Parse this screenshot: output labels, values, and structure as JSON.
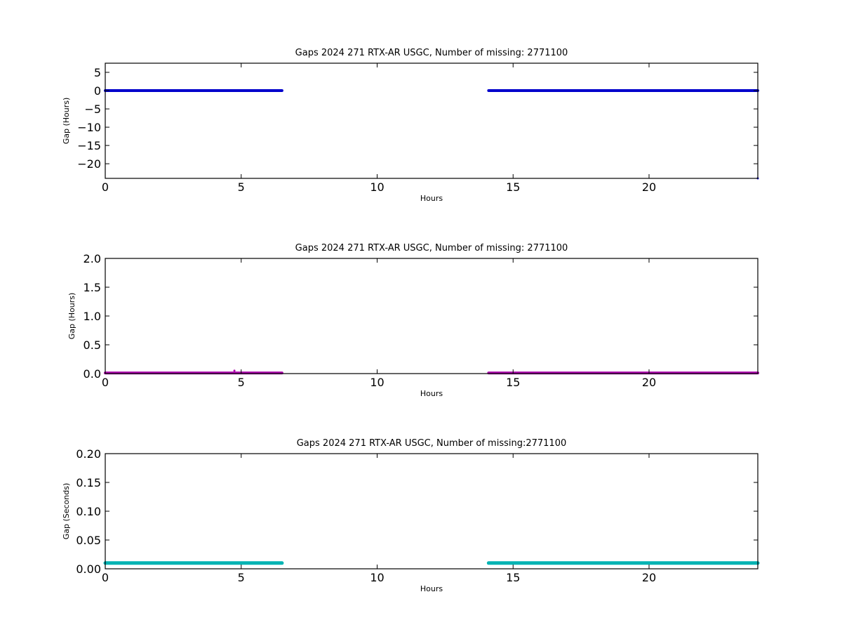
{
  "chart_data": [
    {
      "type": "scatter",
      "title": "Gaps 2024 271 RTX-AR  USGC, Number of missing: 2771100",
      "xlabel": "Hours",
      "ylabel": "Gap (Hours)",
      "xlim": [
        0,
        24
      ],
      "ylim": [
        -24,
        7.5
      ],
      "xticks": [
        0,
        5,
        10,
        15,
        20
      ],
      "yticks": [
        5,
        0,
        -5,
        -10,
        -15,
        -20
      ],
      "xtick_labels": [
        "0",
        "5",
        "10",
        "15",
        "20"
      ],
      "ytick_labels": [
        "5",
        "0",
        "−05",
        "−10",
        "−15",
        "−20"
      ],
      "grid": false,
      "series": [
        {
          "color": "#0000cc",
          "segments": [
            {
              "x": [
                0,
                6.5
              ],
              "y": [
                0,
                0
              ]
            },
            {
              "x": [
                14.1,
                24
              ],
              "y": [
                0,
                0
              ]
            }
          ],
          "points": [
            {
              "x": 24,
              "y": -24
            }
          ]
        }
      ]
    },
    {
      "type": "scatter",
      "title": "Gaps 2024 271 RTX-AR  USGC, Number of missing: 2771100",
      "xlabel": "Hours",
      "ylabel": "Gap (Hours)",
      "xlim": [
        0,
        24
      ],
      "ylim": [
        0,
        2
      ],
      "xticks": [
        0,
        5,
        10,
        15,
        20
      ],
      "yticks": [
        0,
        0.5,
        1,
        1.5,
        2
      ],
      "xtick_labels": [
        "0",
        "5",
        "10",
        "15",
        "20"
      ],
      "ytick_labels": [
        "0.0",
        "0.5",
        "1.0",
        "1.5",
        "2.0"
      ],
      "grid": false,
      "series": [
        {
          "color": "#aa00aa",
          "segments": [
            {
              "x": [
                0,
                6.5
              ],
              "y": [
                0.01,
                0.01
              ]
            },
            {
              "x": [
                14.1,
                24
              ],
              "y": [
                0.01,
                0.01
              ]
            }
          ],
          "points": [
            {
              "x": 4.75,
              "y": 0.05
            }
          ]
        }
      ]
    },
    {
      "type": "scatter",
      "title": "Gaps 2024 271 RTX-AR  USGC, Number of missing:2771100",
      "xlabel": "Hours",
      "ylabel": "Gap (Seconds)",
      "xlim": [
        0,
        24
      ],
      "ylim": [
        0,
        0.2
      ],
      "xticks": [
        0,
        5,
        10,
        15,
        20
      ],
      "yticks": [
        0,
        0.05,
        0.1,
        0.15,
        0.2
      ],
      "xtick_labels": [
        "0",
        "5",
        "10",
        "15",
        "20"
      ],
      "ytick_labels": [
        "0.00",
        "0.05",
        "0.10",
        "0.15",
        "0.20"
      ],
      "grid": false,
      "series": [
        {
          "color": "#00b3b3",
          "segments": [
            {
              "x": [
                0,
                6.5
              ],
              "y": [
                0.01,
                0.01
              ]
            },
            {
              "x": [
                14.1,
                24
              ],
              "y": [
                0.01,
                0.01
              ]
            }
          ],
          "points": []
        }
      ]
    }
  ]
}
